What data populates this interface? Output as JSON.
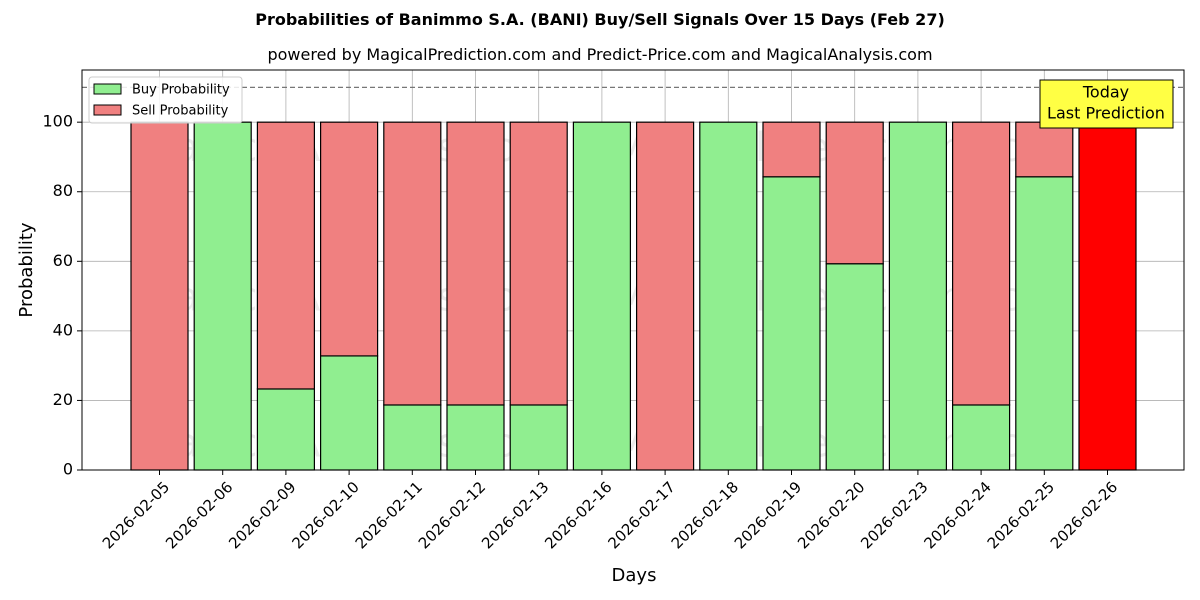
{
  "chart_data": {
    "type": "bar",
    "stacked": true,
    "title": "Probabilities of Banimmo S.A. (BANI) Buy/Sell Signals Over 15 Days (Feb 27)",
    "subtitle": "powered by MagicalPrediction.com and Predict-Price.com and MagicalAnalysis.com",
    "xlabel": "Days",
    "ylabel": "Probability",
    "ylim": [
      0,
      115
    ],
    "yticks": [
      0,
      20,
      40,
      60,
      80,
      100
    ],
    "reference_line": 110,
    "grid": true,
    "legend_position": "top-left",
    "categories": [
      "2026-02-05",
      "2026-02-06",
      "2026-02-09",
      "2026-02-10",
      "2026-02-11",
      "2026-02-12",
      "2026-02-13",
      "2026-02-16",
      "2026-02-17",
      "2026-02-18",
      "2026-02-19",
      "2026-02-20",
      "2026-02-23",
      "2026-02-24",
      "2026-02-25",
      "2026-02-26"
    ],
    "series": [
      {
        "name": "Buy Probability",
        "color": "#90ee90",
        "values": [
          0,
          100,
          23.3,
          32.8,
          18.7,
          18.7,
          18.7,
          100,
          0,
          100,
          84.3,
          59.3,
          100,
          18.7,
          84.3,
          0
        ]
      },
      {
        "name": "Sell Probability",
        "color": "#f08080",
        "values": [
          100,
          0,
          76.7,
          67.2,
          81.3,
          81.3,
          81.3,
          0,
          100,
          0,
          15.7,
          40.7,
          0,
          81.3,
          15.7,
          100
        ]
      }
    ],
    "highlight": {
      "index": 15,
      "color": "#ff0000",
      "annotation": [
        "Today",
        "Last Prediction"
      ],
      "annotation_color": "#ffff44"
    },
    "watermarks": [
      "MagicalAnalysis.com",
      "MagicalPrediction.com"
    ]
  }
}
